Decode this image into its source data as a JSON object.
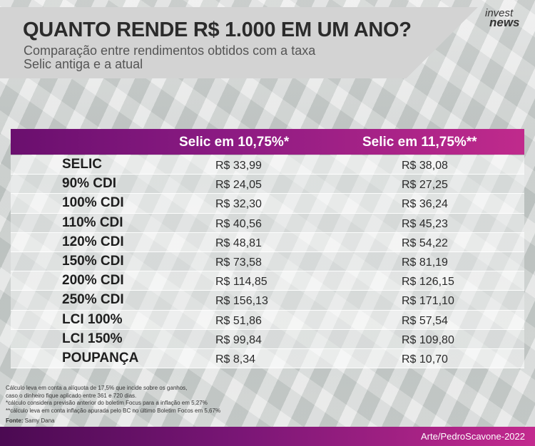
{
  "header": {
    "title": "QUANTO RENDE R$ 1.000 EM UM ANO?",
    "subtitle_line1": "Comparação entre rendimentos obtidos com a taxa",
    "subtitle_line2": "Selic antiga e a atual",
    "logo_line1": "invest",
    "logo_line2": "news"
  },
  "table": {
    "col1_header": "Selic em 10,75%*",
    "col2_header": "Selic em 11,75%**",
    "rows": [
      {
        "label": "SELIC",
        "v1": "R$ 33,99",
        "v2": "R$ 38,08"
      },
      {
        "label": "90% CDI",
        "v1": "R$ 24,05",
        "v2": "R$ 27,25"
      },
      {
        "label": "100% CDI",
        "v1": "R$ 32,30",
        "v2": "R$ 36,24"
      },
      {
        "label": "110% CDI",
        "v1": "R$ 40,56",
        "v2": "R$ 45,23"
      },
      {
        "label": "120% CDI",
        "v1": "R$ 48,81",
        "v2": "R$ 54,22"
      },
      {
        "label": "150% CDI",
        "v1": "R$ 73,58",
        "v2": "R$ 81,19"
      },
      {
        "label": "200% CDI",
        "v1": "R$ 114,85",
        "v2": "R$ 126,15"
      },
      {
        "label": "250% CDI",
        "v1": "R$ 156,13",
        "v2": "R$ 171,10"
      },
      {
        "label": "LCI 100%",
        "v1": "R$ 51,86",
        "v2": "R$ 57,54"
      },
      {
        "label": "LCI 150%",
        "v1": "R$ 99,84",
        "v2": "R$ 109,80"
      },
      {
        "label": "POUPANÇA",
        "v1": "R$ 8,34",
        "v2": "R$ 10,70"
      }
    ]
  },
  "footnotes": [
    "Cálculo leva em conta a alíquota de 17,5% que incide sobre os ganhos,",
    "caso o dinheiro fique aplicado entre 361 e 720 dias.",
    "*cálculo considera previsão anterior do boletim Focus para a inflação em 5,27%",
    "**cálculo leva em conta inflação apurada pelo BC no último Boletim Focos em 5,67%"
  ],
  "source": {
    "label": "Fonte:",
    "value": "Samy Dana"
  },
  "footer": {
    "credit": "Arte/PedroScavone-2022"
  }
}
